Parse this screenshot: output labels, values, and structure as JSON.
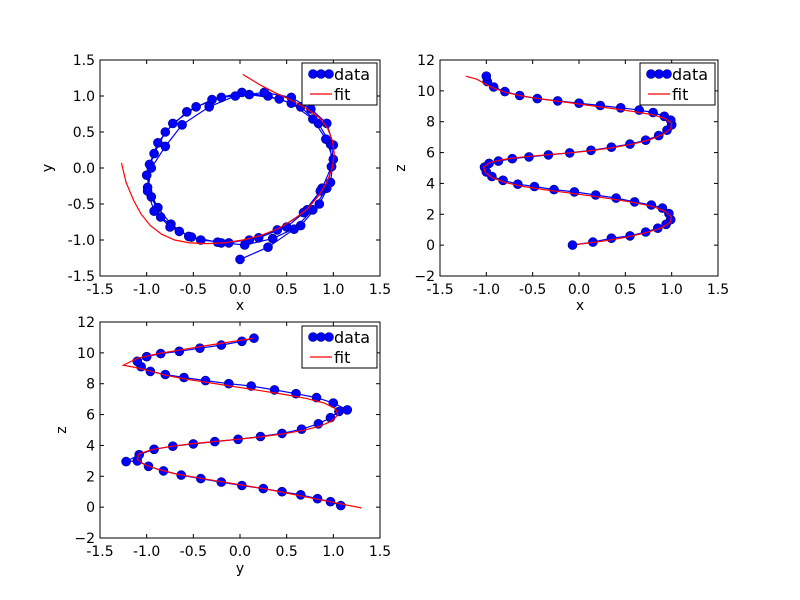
{
  "figure": {
    "background": "#ffffff"
  },
  "style": {
    "data_color": "#0000ff",
    "fit_color": "#ff0000",
    "marker_edge": "#000080"
  },
  "chart_data": [
    {
      "type": "line",
      "xlabel": "x",
      "ylabel": "y",
      "xlim": [
        -1.5,
        1.5
      ],
      "ylim": [
        -1.5,
        1.5
      ],
      "xticks": [
        "-1.5",
        "-1.0",
        "-0.5",
        "0.0",
        "0.5",
        "1.0",
        "1.5"
      ],
      "yticks": [
        "-1.5",
        "-1.0",
        "-0.5",
        "0.0",
        "0.5",
        "1.0",
        "1.5"
      ],
      "legend": {
        "position": "top-right",
        "entries": [
          "data",
          "fit"
        ]
      },
      "series": [
        {
          "name": "data",
          "kind": "line-marker",
          "color": "#0000ff",
          "x": [
            0.0,
            0.3,
            0.58,
            0.78,
            0.93,
            0.98,
            0.97,
            0.84,
            0.65,
            0.42,
            0.1,
            -0.2,
            -0.47,
            -0.72,
            -0.88,
            -0.97,
            -0.99,
            -0.88,
            -0.74,
            -0.55,
            -0.24,
            0.05,
            0.35,
            0.65,
            0.85,
            0.97,
            1.0,
            0.92,
            0.78,
            0.55,
            0.3,
            0.02,
            -0.3,
            -0.57,
            -0.8,
            -0.92,
            -1.0,
            -0.95,
            -0.85,
            -0.65,
            -0.42,
            -0.12,
            0.2,
            0.5,
            0.72,
            0.88,
            0.98,
            1.0,
            0.93,
            0.76,
            0.55,
            0.26,
            -0.05,
            -0.33,
            -0.62,
            -0.8,
            -0.95,
            -0.99,
            -0.92,
            -0.75,
            -0.52,
            -0.2,
            0.1,
            0.4,
            0.68,
            0.86
          ],
          "y": [
            -1.27,
            -1.1,
            -0.85,
            -0.58,
            -0.28,
            0.02,
            0.33,
            0.62,
            0.85,
            0.96,
            1.02,
            0.98,
            0.85,
            0.62,
            0.35,
            0.05,
            -0.27,
            -0.55,
            -0.78,
            -0.95,
            -1.03,
            -1.07,
            -0.98,
            -0.8,
            -0.5,
            -0.2,
            0.12,
            0.4,
            0.68,
            0.9,
            1.0,
            1.05,
            0.95,
            0.78,
            0.5,
            0.2,
            -0.1,
            -0.4,
            -0.68,
            -0.88,
            -1.0,
            -1.04,
            -0.97,
            -0.82,
            -0.58,
            -0.28,
            0.02,
            0.32,
            0.62,
            0.82,
            0.98,
            1.05,
            1.0,
            0.85,
            0.6,
            0.3,
            0.0,
            -0.32,
            -0.6,
            -0.82,
            -0.96,
            -1.04,
            -1.0,
            -0.86,
            -0.62,
            -0.32
          ]
        },
        {
          "name": "fit",
          "kind": "line",
          "color": "#ff0000",
          "x": [
            -1.27,
            -1.22,
            -1.14,
            -1.06,
            -0.96,
            -0.84,
            -0.7,
            -0.54,
            -0.36,
            -0.17,
            0.03,
            0.22,
            0.41,
            0.57,
            0.72,
            0.84,
            0.93,
            0.99,
            1.01,
            0.99,
            0.94,
            0.85,
            0.72,
            0.57,
            0.4,
            0.22,
            0.03
          ],
          "y": [
            0.07,
            -0.2,
            -0.45,
            -0.64,
            -0.8,
            -0.92,
            -1.0,
            -1.04,
            -1.05,
            -1.04,
            -1.0,
            -0.94,
            -0.84,
            -0.72,
            -0.57,
            -0.39,
            -0.2,
            0.0,
            0.2,
            0.38,
            0.55,
            0.7,
            0.82,
            0.93,
            1.03,
            1.15,
            1.3
          ]
        }
      ]
    },
    {
      "type": "line",
      "xlabel": "x",
      "ylabel": "z",
      "xlim": [
        -1.5,
        1.5
      ],
      "ylim": [
        -2,
        12
      ],
      "xticks": [
        "-1.5",
        "-1.0",
        "-0.5",
        "0.0",
        "0.5",
        "1.0",
        "1.5"
      ],
      "yticks": [
        "−2",
        "0",
        "2",
        "4",
        "6",
        "8",
        "10",
        "12"
      ],
      "legend": {
        "position": "top-right",
        "entries": [
          "data",
          "fit"
        ]
      },
      "series": [
        {
          "name": "data",
          "kind": "line-marker",
          "color": "#0000ff",
          "x": [
            -0.07,
            0.15,
            0.35,
            0.55,
            0.72,
            0.85,
            0.94,
            0.99,
            0.97,
            0.9,
            0.78,
            0.6,
            0.4,
            0.18,
            -0.05,
            -0.27,
            -0.48,
            -0.66,
            -0.82,
            -0.94,
            -1.0,
            -1.02,
            -0.97,
            -0.87,
            -0.72,
            -0.54,
            -0.33,
            -0.1,
            0.13,
            0.35,
            0.55,
            0.72,
            0.86,
            0.95,
            1.0,
            0.99,
            0.92,
            0.8,
            0.65,
            0.45,
            0.23,
            0.0,
            -0.23,
            -0.45,
            -0.64,
            -0.8,
            -0.92,
            -0.99,
            -1.0
          ],
          "y": [
            0.0,
            0.2,
            0.45,
            0.6,
            0.85,
            1.1,
            1.35,
            1.65,
            2.05,
            2.4,
            2.6,
            2.8,
            3.05,
            3.25,
            3.45,
            3.6,
            3.8,
            3.95,
            4.2,
            4.45,
            4.75,
            5.05,
            5.3,
            5.45,
            5.6,
            5.72,
            5.85,
            5.98,
            6.15,
            6.35,
            6.55,
            6.8,
            7.1,
            7.45,
            7.8,
            8.1,
            8.35,
            8.6,
            8.75,
            8.9,
            9.05,
            9.2,
            9.35,
            9.5,
            9.7,
            9.95,
            10.25,
            10.6,
            10.95
          ]
        },
        {
          "name": "fit",
          "kind": "line",
          "color": "#ff0000",
          "x": [
            -0.02,
            0.25,
            0.5,
            0.72,
            0.88,
            0.98,
            1.0,
            0.93,
            0.8,
            0.6,
            0.37,
            0.12,
            -0.13,
            -0.38,
            -0.6,
            -0.79,
            -0.93,
            -1.01,
            -1.03,
            -0.96,
            -0.82,
            -0.63,
            -0.4,
            -0.15,
            0.1,
            0.35,
            0.58,
            0.77,
            0.91,
            0.99,
            1.0,
            0.93,
            0.8,
            0.6,
            0.37,
            0.12,
            -0.13,
            -0.38,
            -0.6,
            -0.79,
            -0.93,
            -1.03,
            -1.1,
            -1.22
          ],
          "y": [
            0.05,
            0.25,
            0.5,
            0.8,
            1.1,
            1.45,
            1.8,
            2.2,
            2.5,
            2.75,
            2.98,
            3.2,
            3.4,
            3.6,
            3.8,
            4.05,
            4.35,
            4.7,
            5.05,
            5.35,
            5.55,
            5.7,
            5.83,
            5.95,
            6.1,
            6.3,
            6.55,
            6.85,
            7.2,
            7.55,
            7.9,
            8.2,
            8.45,
            8.65,
            8.85,
            9.05,
            9.25,
            9.45,
            9.65,
            9.9,
            10.2,
            10.5,
            10.75,
            10.95
          ]
        }
      ]
    },
    {
      "type": "line",
      "xlabel": "y",
      "ylabel": "z",
      "xlim": [
        -1.5,
        1.5
      ],
      "ylim": [
        -2,
        12
      ],
      "xticks": [
        "-1.5",
        "-1.0",
        "-0.5",
        "0.0",
        "0.5",
        "1.0",
        "1.5"
      ],
      "yticks": [
        "−2",
        "0",
        "2",
        "4",
        "6",
        "8",
        "10",
        "12"
      ],
      "legend": {
        "position": "top-right",
        "entries": [
          "data",
          "fit"
        ]
      },
      "series": [
        {
          "name": "data",
          "kind": "line-marker",
          "color": "#0000ff",
          "x": [
            1.08,
            0.97,
            0.83,
            0.65,
            0.45,
            0.25,
            0.02,
            -0.2,
            -0.42,
            -0.63,
            -0.82,
            -0.98,
            -1.1,
            -1.22,
            -1.08,
            -0.92,
            -0.72,
            -0.5,
            -0.27,
            -0.02,
            0.22,
            0.45,
            0.66,
            0.84,
            0.97,
            1.06,
            1.15,
            1.0,
            0.82,
            0.6,
            0.37,
            0.12,
            -0.12,
            -0.37,
            -0.6,
            -0.8,
            -0.96,
            -1.06,
            -1.1,
            -1.0,
            -0.85,
            -0.65,
            -0.43,
            -0.2,
            0.02,
            0.15
          ],
          "y": [
            0.1,
            0.35,
            0.55,
            0.8,
            1.0,
            1.2,
            1.4,
            1.62,
            1.85,
            2.08,
            2.35,
            2.65,
            3.0,
            2.95,
            3.4,
            3.75,
            3.95,
            4.1,
            4.25,
            4.4,
            4.58,
            4.78,
            5.05,
            5.4,
            5.8,
            6.2,
            6.3,
            6.75,
            7.1,
            7.35,
            7.6,
            7.85,
            8.0,
            8.2,
            8.4,
            8.6,
            8.8,
            9.1,
            9.45,
            9.75,
            9.95,
            10.1,
            10.3,
            10.5,
            10.75,
            10.95
          ]
        },
        {
          "name": "fit",
          "kind": "line",
          "color": "#ff0000",
          "x": [
            1.3,
            1.05,
            0.8,
            0.55,
            0.3,
            0.05,
            -0.2,
            -0.45,
            -0.68,
            -0.88,
            -1.02,
            -1.1,
            -1.08,
            -0.95,
            -0.76,
            -0.53,
            -0.28,
            -0.03,
            0.22,
            0.46,
            0.68,
            0.86,
            0.99,
            1.05,
            1.02,
            0.9,
            0.71,
            0.48,
            0.22,
            -0.05,
            -0.32,
            -0.58,
            -0.8,
            -0.98,
            -1.12,
            -1.25,
            -1.1,
            -0.88,
            -0.63,
            -0.38,
            -0.12,
            0.15
          ],
          "y": [
            -0.05,
            0.25,
            0.55,
            0.85,
            1.15,
            1.4,
            1.65,
            1.9,
            2.15,
            2.45,
            2.75,
            3.1,
            3.45,
            3.72,
            3.92,
            4.1,
            4.25,
            4.4,
            4.55,
            4.75,
            4.98,
            5.25,
            5.6,
            6.0,
            6.4,
            6.75,
            7.05,
            7.3,
            7.55,
            7.8,
            8.05,
            8.3,
            8.55,
            8.85,
            9.05,
            9.2,
            9.65,
            9.95,
            10.2,
            10.45,
            10.7,
            10.95
          ]
        }
      ]
    }
  ]
}
